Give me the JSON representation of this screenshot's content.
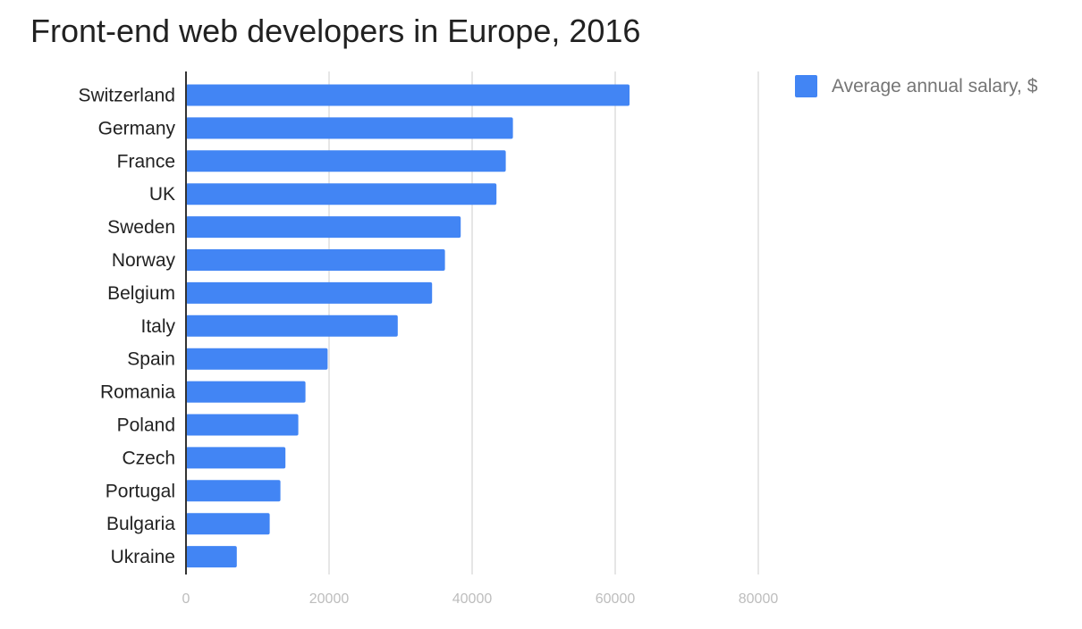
{
  "chart_data": {
    "type": "bar",
    "orientation": "horizontal",
    "title": "Front-end web developers in Europe, 2016",
    "categories": [
      "Switzerland",
      "Germany",
      "France",
      "UK",
      "Sweden",
      "Norway",
      "Belgium",
      "Italy",
      "Spain",
      "Romania",
      "Poland",
      "Czech",
      "Portugal",
      "Bulgaria",
      "Ukraine"
    ],
    "series": [
      {
        "name": "Average annual salary, $",
        "values": [
          62000,
          45700,
          44700,
          43400,
          38400,
          36200,
          34400,
          29600,
          19800,
          16700,
          15700,
          13900,
          13200,
          11700,
          7100
        ]
      }
    ],
    "xlabel": "",
    "ylabel": "",
    "xlim": [
      0,
      80000
    ],
    "x_ticks": [
      "0",
      "20000",
      "40000",
      "60000",
      "80000"
    ],
    "grid": true,
    "legend_position": "top-right",
    "bar_color": "#4285f4",
    "grid_color": "#cccccc",
    "axis_color": "#333333",
    "tick_label_color": "#bdbdbd",
    "category_label_color": "#222222"
  }
}
